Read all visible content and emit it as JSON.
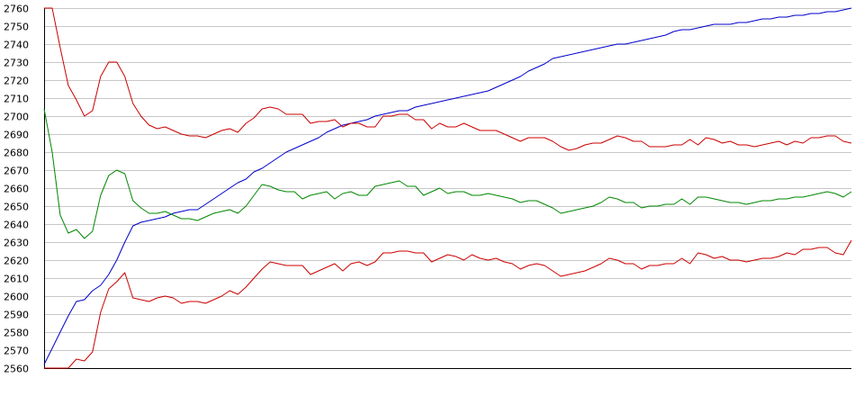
{
  "chart_data": {
    "type": "line",
    "title": "",
    "xlabel": "",
    "ylabel": "",
    "ylim": [
      2560,
      2760
    ],
    "yticks": [
      2560,
      2570,
      2580,
      2590,
      2600,
      2610,
      2620,
      2630,
      2640,
      2650,
      2660,
      2670,
      2680,
      2690,
      2700,
      2710,
      2720,
      2730,
      2740,
      2750,
      2760
    ],
    "xlim": [
      0,
      100
    ],
    "grid": "horizontal",
    "legend": "none",
    "colors": {
      "blue": "#0000cc",
      "red": "#cc0000",
      "green": "#008800",
      "grid": "#c8c8c8",
      "axis": "#000000"
    },
    "series": [
      {
        "color": "#0000cc",
        "x": [
          0,
          1,
          2,
          3,
          4,
          5,
          6,
          7,
          8,
          9,
          10,
          11,
          12,
          13,
          14,
          15,
          16,
          17,
          18,
          19,
          20,
          21,
          22,
          23,
          24,
          25,
          26,
          27,
          28,
          29,
          30,
          31,
          32,
          33,
          34,
          35,
          36,
          37,
          38,
          39,
          40,
          41,
          42,
          43,
          44,
          45,
          46,
          47,
          48,
          49,
          50,
          51,
          52,
          53,
          54,
          55,
          56,
          57,
          58,
          59,
          60,
          61,
          62,
          63,
          64,
          65,
          66,
          67,
          68,
          69,
          70,
          71,
          72,
          73,
          74,
          75,
          76,
          77,
          78,
          79,
          80,
          81,
          82,
          83,
          84,
          85,
          86,
          87,
          88,
          89,
          90,
          91,
          92,
          93,
          94,
          95,
          96,
          97,
          98,
          99,
          100
        ],
        "y": [
          2562,
          2571,
          2580,
          2589,
          2597,
          2598,
          2603,
          2606,
          2612,
          2620,
          2630,
          2639,
          2641,
          2642,
          2643,
          2644,
          2646,
          2647,
          2648,
          2648,
          2651,
          2654,
          2657,
          2660,
          2663,
          2665,
          2669,
          2671,
          2674,
          2677,
          2680,
          2682,
          2684,
          2686,
          2688,
          2691,
          2693,
          2695,
          2696,
          2697,
          2698,
          2700,
          2701,
          2702,
          2703,
          2703,
          2705,
          2706,
          2707,
          2708,
          2709,
          2710,
          2711,
          2712,
          2713,
          2714,
          2716,
          2718,
          2720,
          2722,
          2725,
          2727,
          2729,
          2732,
          2733,
          2734,
          2735,
          2736,
          2737,
          2738,
          2739,
          2740,
          2740,
          2741,
          2742,
          2743,
          2744,
          2745,
          2747,
          2748,
          2748,
          2749,
          2750,
          2751,
          2751,
          2751,
          2752,
          2752,
          2753,
          2754,
          2754,
          2755,
          2755,
          2756,
          2756,
          2757,
          2757,
          2758,
          2758,
          2759,
          2760
        ]
      },
      {
        "color": "#cc0000",
        "x": [
          0,
          1,
          2,
          3,
          4,
          5,
          6,
          7,
          8,
          9,
          10,
          11,
          12,
          13,
          14,
          15,
          16,
          17,
          18,
          19,
          20,
          21,
          22,
          23,
          24,
          25,
          26,
          27,
          28,
          29,
          30,
          31,
          32,
          33,
          34,
          35,
          36,
          37,
          38,
          39,
          40,
          41,
          42,
          43,
          44,
          45,
          46,
          47,
          48,
          49,
          50,
          51,
          52,
          53,
          54,
          55,
          56,
          57,
          58,
          59,
          60,
          61,
          62,
          63,
          64,
          65,
          66,
          67,
          68,
          69,
          70,
          71,
          72,
          73,
          74,
          75,
          76,
          77,
          78,
          79,
          80,
          81,
          82,
          83,
          84,
          85,
          86,
          87,
          88,
          89,
          90,
          91,
          92,
          93,
          94,
          95,
          96,
          97,
          98,
          99,
          100
        ],
        "y": [
          2760,
          2760,
          2738,
          2717,
          2709,
          2700,
          2703,
          2722,
          2730,
          2730,
          2722,
          2707,
          2700,
          2695,
          2693,
          2694,
          2692,
          2690,
          2689,
          2689,
          2688,
          2690,
          2692,
          2693,
          2691,
          2696,
          2699,
          2704,
          2705,
          2704,
          2701,
          2701,
          2701,
          2696,
          2697,
          2697,
          2698,
          2694,
          2696,
          2696,
          2694,
          2694,
          2700,
          2700,
          2701,
          2701,
          2698,
          2698,
          2693,
          2696,
          2694,
          2694,
          2696,
          2694,
          2692,
          2692,
          2692,
          2690,
          2688,
          2686,
          2688,
          2688,
          2688,
          2686,
          2683,
          2681,
          2682,
          2684,
          2685,
          2685,
          2687,
          2689,
          2688,
          2686,
          2686,
          2683,
          2683,
          2683,
          2684,
          2684,
          2687,
          2684,
          2688,
          2687,
          2685,
          2686,
          2684,
          2684,
          2683,
          2684,
          2685,
          2686,
          2684,
          2686,
          2685,
          2688,
          2688,
          2689,
          2689,
          2686,
          2685
        ]
      },
      {
        "color": "#008800",
        "x": [
          0,
          1,
          2,
          3,
          4,
          5,
          6,
          7,
          8,
          9,
          10,
          11,
          12,
          13,
          14,
          15,
          16,
          17,
          18,
          19,
          20,
          21,
          22,
          23,
          24,
          25,
          26,
          27,
          28,
          29,
          30,
          31,
          32,
          33,
          34,
          35,
          36,
          37,
          38,
          39,
          40,
          41,
          42,
          43,
          44,
          45,
          46,
          47,
          48,
          49,
          50,
          51,
          52,
          53,
          54,
          55,
          56,
          57,
          58,
          59,
          60,
          61,
          62,
          63,
          64,
          65,
          66,
          67,
          68,
          69,
          70,
          71,
          72,
          73,
          74,
          75,
          76,
          77,
          78,
          79,
          80,
          81,
          82,
          83,
          84,
          85,
          86,
          87,
          88,
          89,
          90,
          91,
          92,
          93,
          94,
          95,
          96,
          97,
          98,
          99,
          100
        ],
        "y": [
          2704,
          2680,
          2645,
          2635,
          2637,
          2632,
          2636,
          2656,
          2667,
          2670,
          2668,
          2653,
          2649,
          2646,
          2646,
          2647,
          2645,
          2643,
          2643,
          2642,
          2644,
          2646,
          2647,
          2648,
          2646,
          2650,
          2656,
          2662,
          2661,
          2659,
          2658,
          2658,
          2654,
          2656,
          2657,
          2658,
          2654,
          2657,
          2658,
          2656,
          2656,
          2661,
          2662,
          2663,
          2664,
          2661,
          2661,
          2656,
          2658,
          2660,
          2657,
          2658,
          2658,
          2656,
          2656,
          2657,
          2656,
          2655,
          2654,
          2652,
          2653,
          2653,
          2651,
          2649,
          2646,
          2647,
          2648,
          2649,
          2650,
          2652,
          2655,
          2654,
          2652,
          2652,
          2649,
          2650,
          2650,
          2651,
          2651,
          2654,
          2651,
          2655,
          2655,
          2654,
          2653,
          2652,
          2652,
          2651,
          2652,
          2653,
          2653,
          2654,
          2654,
          2655,
          2655,
          2656,
          2657,
          2658,
          2657,
          2655,
          2658
        ]
      },
      {
        "color": "#cc0000",
        "x": [
          0,
          1,
          2,
          3,
          4,
          5,
          6,
          7,
          8,
          9,
          10,
          11,
          12,
          13,
          14,
          15,
          16,
          17,
          18,
          19,
          20,
          21,
          22,
          23,
          24,
          25,
          26,
          27,
          28,
          29,
          30,
          31,
          32,
          33,
          34,
          35,
          36,
          37,
          38,
          39,
          40,
          41,
          42,
          43,
          44,
          45,
          46,
          47,
          48,
          49,
          50,
          51,
          52,
          53,
          54,
          55,
          56,
          57,
          58,
          59,
          60,
          61,
          62,
          63,
          64,
          65,
          66,
          67,
          68,
          69,
          70,
          71,
          72,
          73,
          74,
          75,
          76,
          77,
          78,
          79,
          80,
          81,
          82,
          83,
          84,
          85,
          86,
          87,
          88,
          89,
          90,
          91,
          92,
          93,
          94,
          95,
          96,
          97,
          98,
          99,
          100
        ],
        "y": [
          2560,
          2560,
          2560,
          2560,
          2565,
          2564,
          2569,
          2591,
          2604,
          2608,
          2613,
          2599,
          2598,
          2597,
          2599,
          2600,
          2599,
          2596,
          2597,
          2597,
          2596,
          2598,
          2600,
          2603,
          2601,
          2605,
          2610,
          2615,
          2619,
          2618,
          2617,
          2617,
          2617,
          2612,
          2614,
          2616,
          2618,
          2614,
          2618,
          2619,
          2617,
          2619,
          2624,
          2624,
          2625,
          2625,
          2624,
          2624,
          2619,
          2621,
          2623,
          2622,
          2620,
          2623,
          2621,
          2620,
          2621,
          2619,
          2618,
          2615,
          2617,
          2618,
          2617,
          2614,
          2611,
          2612,
          2613,
          2614,
          2616,
          2618,
          2621,
          2620,
          2618,
          2618,
          2615,
          2617,
          2617,
          2618,
          2618,
          2621,
          2618,
          2624,
          2623,
          2621,
          2622,
          2620,
          2620,
          2619,
          2620,
          2621,
          2621,
          2622,
          2624,
          2623,
          2626,
          2626,
          2627,
          2627,
          2624,
          2623,
          2631
        ]
      }
    ]
  }
}
